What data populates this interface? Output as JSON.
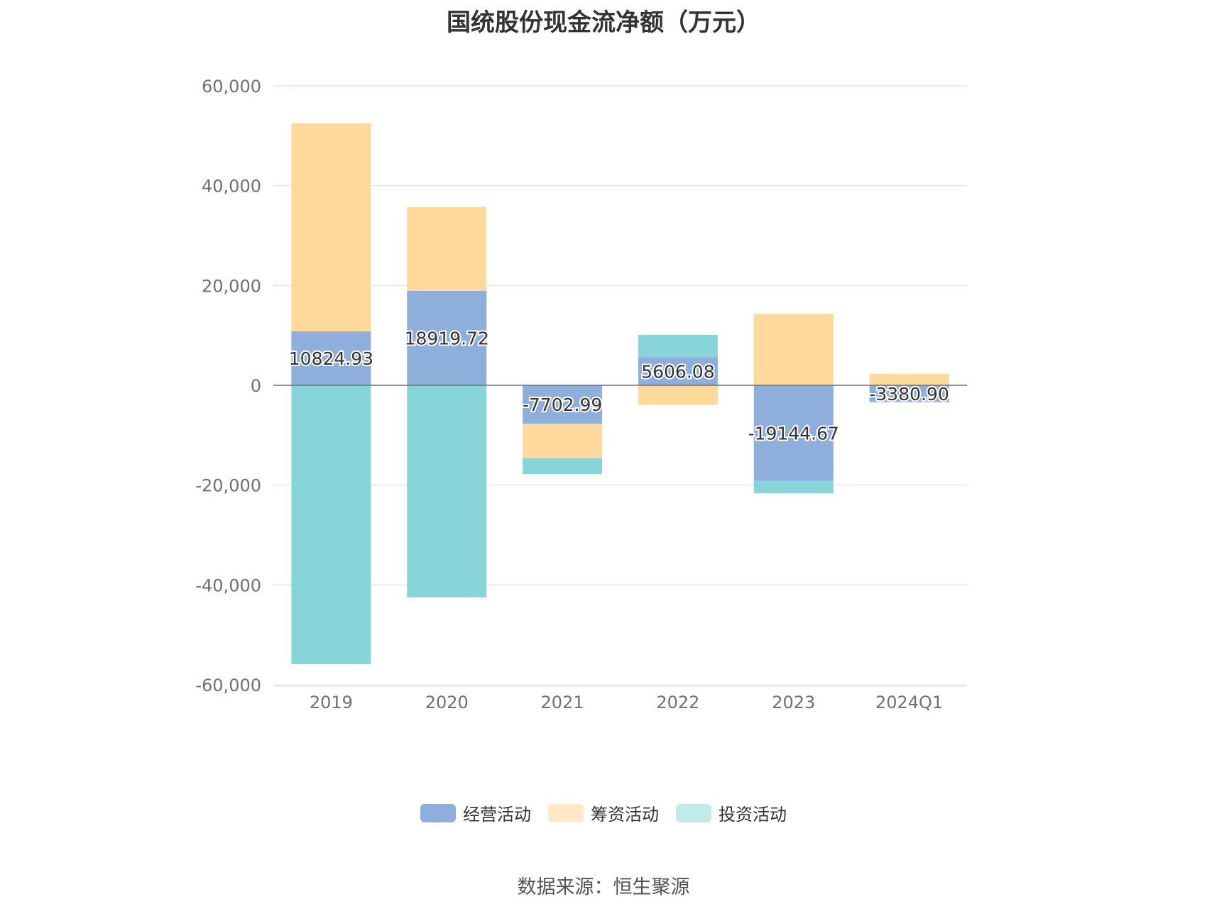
{
  "chart_data": {
    "type": "bar",
    "stacked": true,
    "title": "国统股份现金流净额（万元）",
    "categories": [
      "2019",
      "2020",
      "2021",
      "2022",
      "2023",
      "2024Q1"
    ],
    "series": [
      {
        "name": "经营活动",
        "color": "#8eaedb",
        "values": [
          10824.93,
          18919.72,
          -7702.99,
          5606.08,
          -19144.67,
          -3380.9
        ]
      },
      {
        "name": "筹资活动",
        "color": "#fed99b",
        "values": [
          41700,
          16800,
          -6900,
          -3900,
          14300,
          2300
        ]
      },
      {
        "name": "投资活动",
        "color": "#88d5d9",
        "values": [
          -55900,
          -42500,
          -3200,
          4500,
          -2500,
          0
        ]
      }
    ],
    "data_labels": [
      "10824.93",
      "18919.72",
      "-7702.99",
      "5606.08",
      "-19144.67",
      "-3380.90"
    ],
    "y_ticks": [
      "60,000",
      "40,000",
      "20,000",
      "0",
      "-20,000",
      "-40,000",
      "-60,000"
    ],
    "ylim": [
      -60000,
      60000
    ],
    "legend_position": "bottom",
    "grid": true,
    "source": "数据来源：恒生聚源"
  },
  "legend_colors": [
    "#8eaedb",
    "#ffe9c7",
    "#c2eaeb"
  ]
}
